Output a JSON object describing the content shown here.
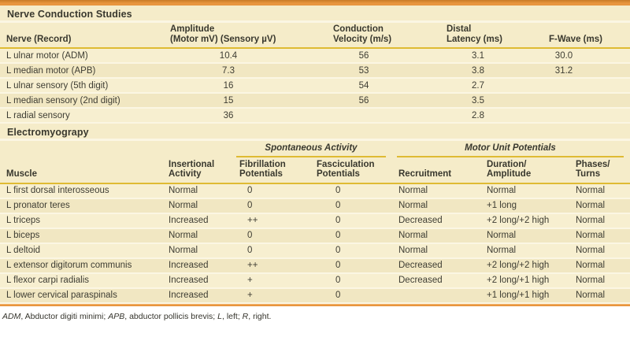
{
  "colors": {
    "accent_orange": "#E8953E",
    "gold_rule": "#DFBB33",
    "table_background": "#F5ECC9",
    "row_light": "#F7EFD0",
    "row_dark": "#F1E7C2",
    "text": "#3E3D33"
  },
  "ncs_table": {
    "title": "Nerve Conduction Studies",
    "columns": [
      {
        "lines": [
          "Nerve (Record)"
        ]
      },
      {
        "lines": [
          "Amplitude",
          "(Motor mV) (Sensory µV)"
        ]
      },
      {
        "lines": [
          "Conduction",
          "Velocity (m/s)"
        ]
      },
      {
        "lines": [
          "Distal",
          "Latency (ms)"
        ]
      },
      {
        "lines": [
          "F-Wave (ms)"
        ]
      }
    ],
    "rows": [
      [
        "L ulnar motor (ADM)",
        "10.4",
        "56",
        "3.1",
        "30.0"
      ],
      [
        "L median motor (APB)",
        "7.3",
        "53",
        "3.8",
        "31.2"
      ],
      [
        "L ulnar sensory (5th digit)",
        "16",
        "54",
        "2.7",
        ""
      ],
      [
        "L median sensory (2nd digit)",
        "15",
        "56",
        "3.5",
        ""
      ],
      [
        "L radial sensory",
        "36",
        "",
        "2.8",
        ""
      ]
    ]
  },
  "emg_table": {
    "title": "Electromyograpy",
    "group_headers": [
      {
        "label": "Spontaneous Activity"
      },
      {
        "label": "Motor Unit Potentials"
      }
    ],
    "columns": [
      {
        "lines": [
          "Muscle"
        ]
      },
      {
        "lines": [
          "Insertional",
          "Activity"
        ]
      },
      {
        "lines": [
          "Fibrillation",
          "Potentials"
        ]
      },
      {
        "lines": [
          "Fasciculation",
          "Potentials"
        ]
      },
      {
        "lines": [
          "Recruitment"
        ]
      },
      {
        "lines": [
          "Duration/",
          "Amplitude"
        ]
      },
      {
        "lines": [
          "Phases/",
          "Turns"
        ]
      }
    ],
    "rows": [
      [
        "L first dorsal interosseous",
        "Normal",
        "0",
        "0",
        "Normal",
        "Normal",
        "Normal"
      ],
      [
        "L pronator teres",
        "Normal",
        "0",
        "0",
        "Normal",
        "+1 long",
        "Normal"
      ],
      [
        "L triceps",
        "Increased",
        "++",
        "0",
        "Decreased",
        "+2 long/+2 high",
        "Normal"
      ],
      [
        "L biceps",
        "Normal",
        "0",
        "0",
        "Normal",
        "Normal",
        "Normal"
      ],
      [
        "L deltoid",
        "Normal",
        "0",
        "0",
        "Normal",
        "Normal",
        "Normal"
      ],
      [
        "L extensor digitorum communis",
        "Increased",
        "++",
        "0",
        "Decreased",
        "+2 long/+2 high",
        "Normal"
      ],
      [
        "L flexor carpi radialis",
        "Increased",
        "+",
        "0",
        "Decreased",
        "+2 long/+1 high",
        "Normal"
      ],
      [
        "L lower cervical paraspinals",
        "Increased",
        "+",
        "0",
        "",
        "+1 long/+1 high",
        "Normal"
      ]
    ]
  },
  "footnote": {
    "segments": [
      {
        "text": "ADM",
        "italic": true
      },
      {
        "text": ", Abductor digiti minimi; ",
        "italic": false
      },
      {
        "text": "APB",
        "italic": true
      },
      {
        "text": ", abductor pollicis brevis; ",
        "italic": false
      },
      {
        "text": "L",
        "italic": true
      },
      {
        "text": ", left; ",
        "italic": false
      },
      {
        "text": "R",
        "italic": true
      },
      {
        "text": ", right.",
        "italic": false
      }
    ]
  }
}
